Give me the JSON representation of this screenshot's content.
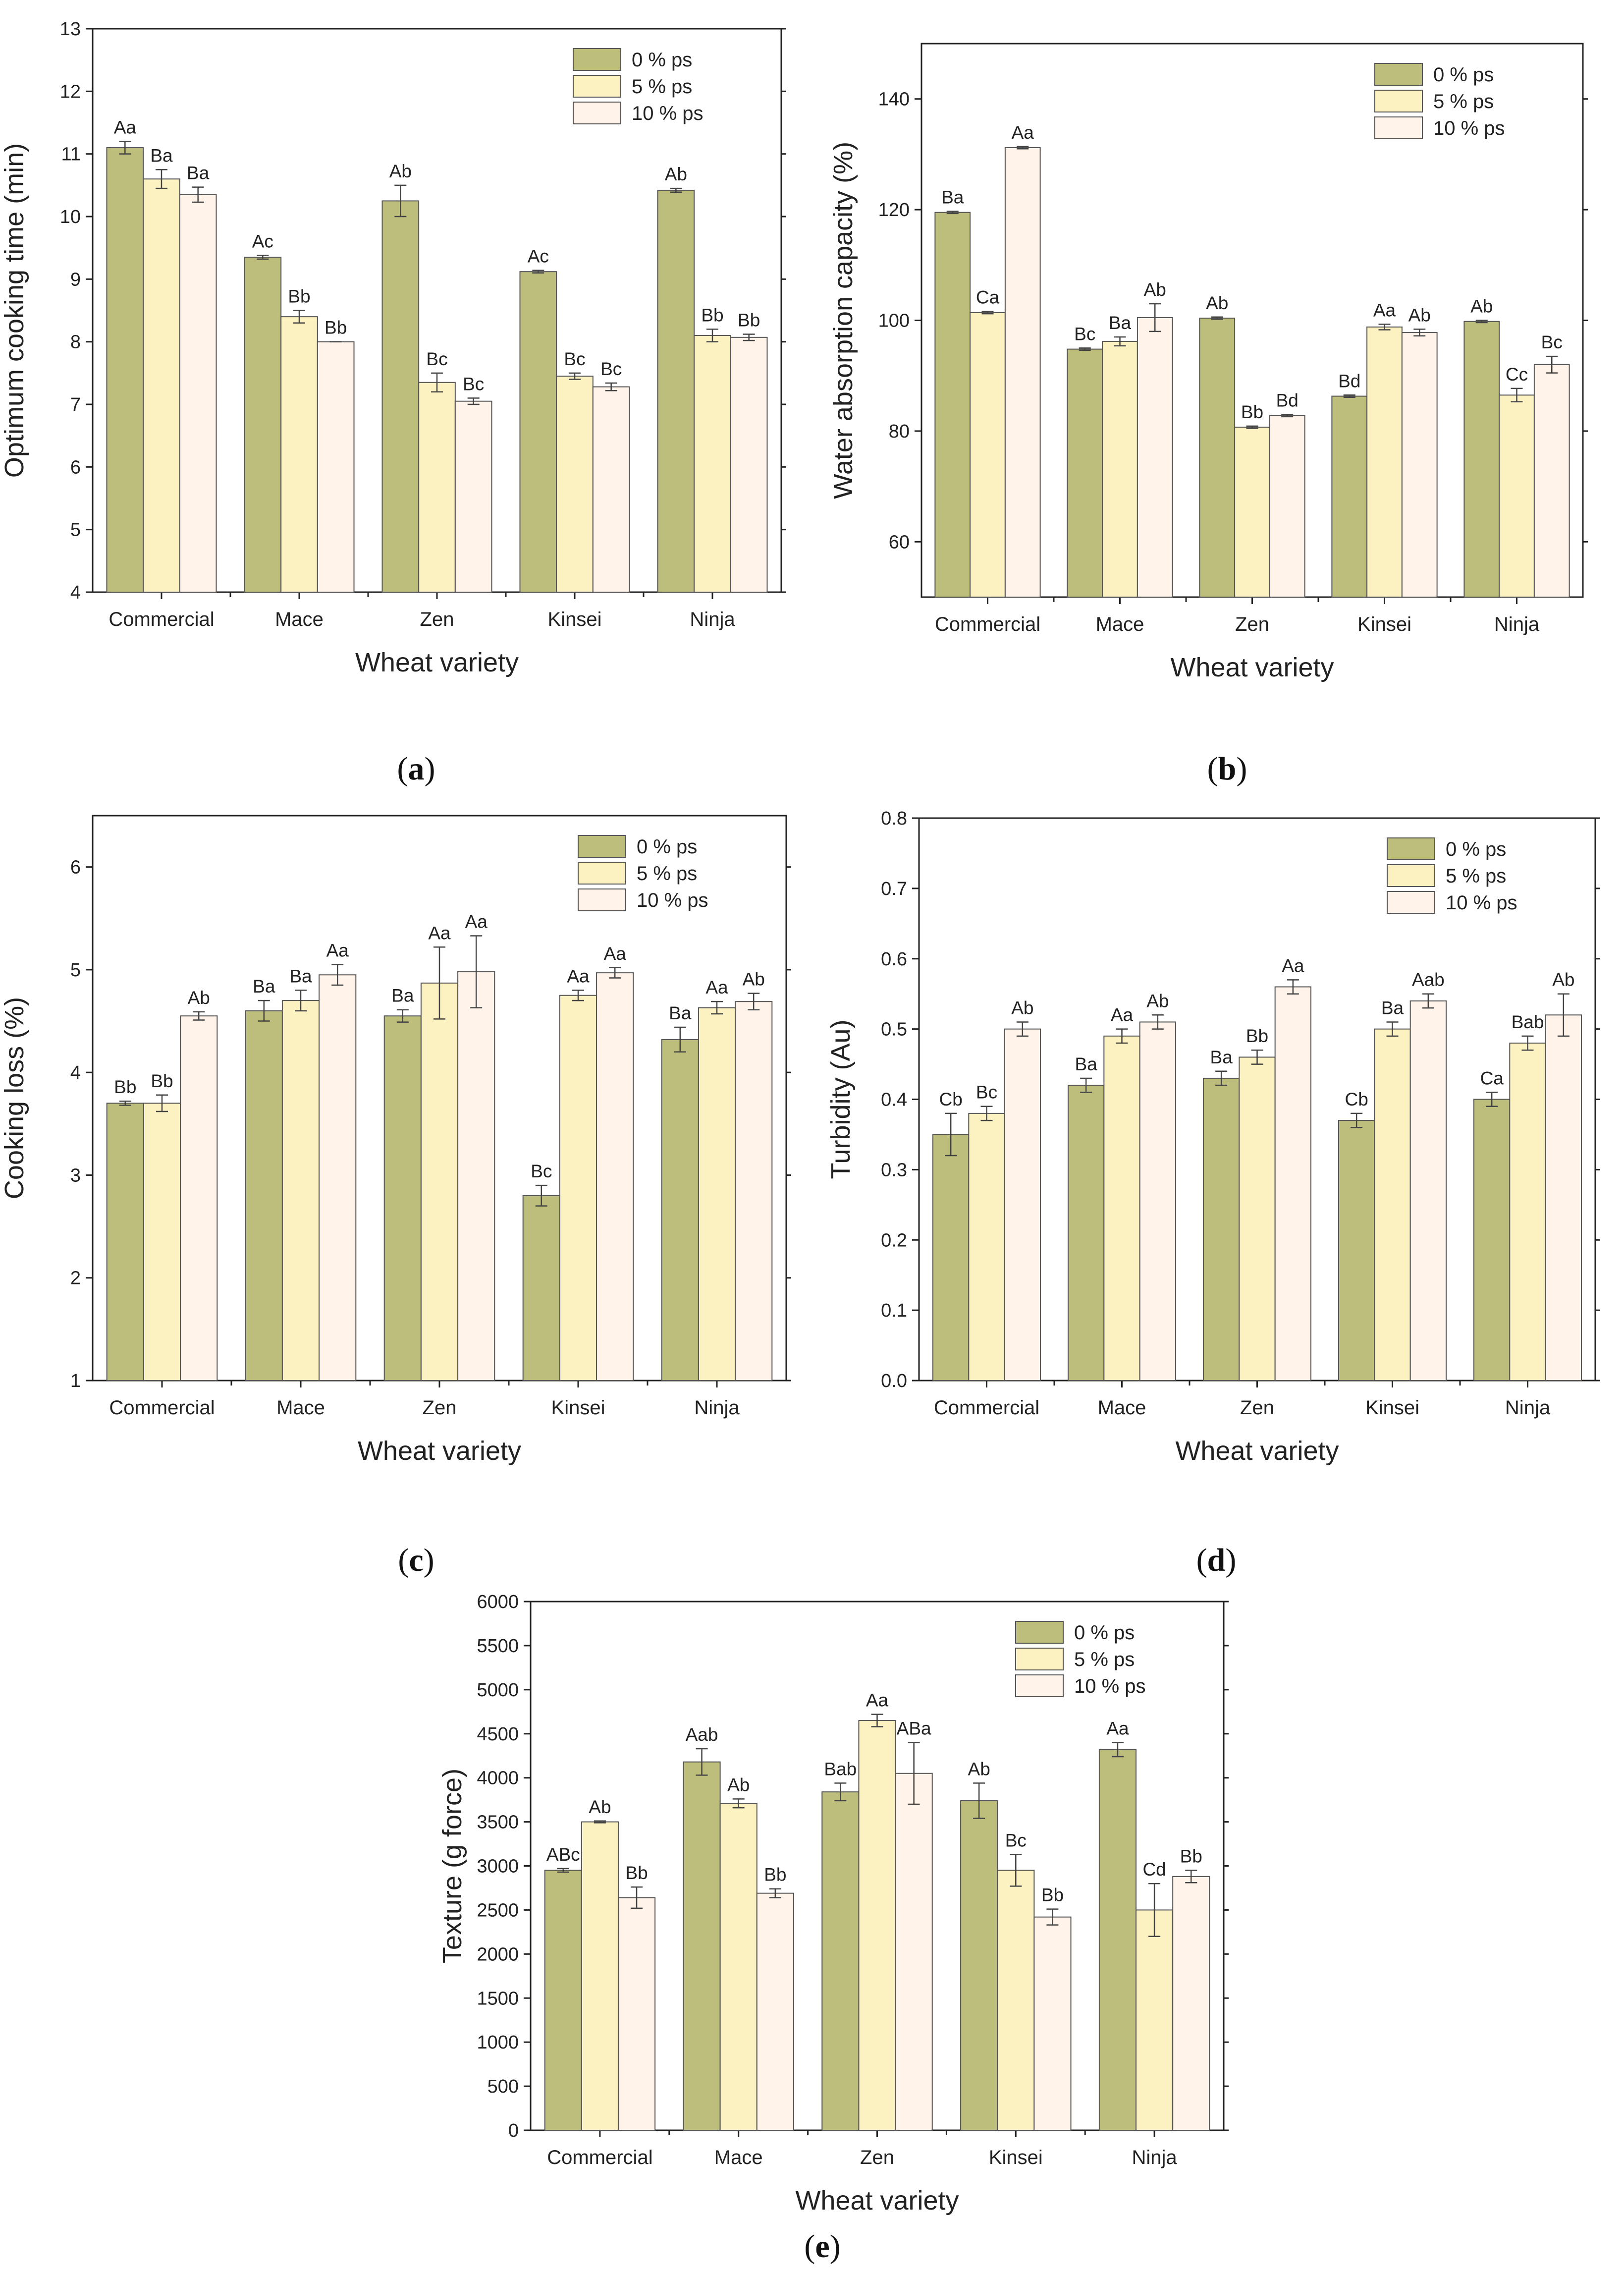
{
  "figure": {
    "colors": {
      "bar_0": "#bdbd7c",
      "bar_5": "#fbf1c1",
      "bar_10": "#fff3ea",
      "stroke": "#333333"
    },
    "error_bar_color": "#444444"
  },
  "chart_data": [
    {
      "id": "a",
      "type": "bar",
      "caption": "(a)",
      "caption_letter": "a",
      "ylabel": "Optimum cooking time (min)",
      "xlabel": "Wheat variety",
      "ylim": [
        4,
        13
      ],
      "yticks": [
        "4",
        "5",
        "6",
        "7",
        "8",
        "9",
        "10",
        "11",
        "12",
        "13"
      ],
      "categories": [
        "Commercial",
        "Mace",
        "Zen",
        "Kinsei",
        "Ninja"
      ],
      "legend": [
        "0 % ps",
        "5 % ps",
        "10 % ps"
      ],
      "legend_position": "top-right",
      "series": [
        {
          "name": "0 % ps",
          "values": [
            11.1,
            9.35,
            10.25,
            9.12,
            10.42
          ],
          "errors": [
            0.1,
            0.03,
            0.25,
            0.02,
            0.03
          ],
          "labels": [
            "Aa",
            "Ac",
            "Ab",
            "Ac",
            "Ab"
          ]
        },
        {
          "name": "5 % ps",
          "values": [
            10.6,
            8.4,
            7.35,
            7.45,
            8.1
          ],
          "errors": [
            0.15,
            0.1,
            0.15,
            0.05,
            0.1
          ],
          "labels": [
            "Ba",
            "Bb",
            "Bc",
            "Bc",
            "Bb"
          ]
        },
        {
          "name": "10 % ps",
          "values": [
            10.35,
            8.0,
            7.05,
            7.28,
            8.07
          ],
          "errors": [
            0.12,
            0.0,
            0.05,
            0.06,
            0.05
          ],
          "labels": [
            "Ba",
            "Bb",
            "Bc",
            "Bc",
            "Bb"
          ]
        }
      ]
    },
    {
      "id": "b",
      "type": "bar",
      "caption": "(b)",
      "caption_letter": "b",
      "ylabel": "Water absorption capacity (%)",
      "xlabel": "Wheat variety",
      "ylim": [
        50,
        150
      ],
      "yticks": [
        "60",
        "80",
        "100",
        "120",
        "140"
      ],
      "categories": [
        "Commercial",
        "Mace",
        "Zen",
        "Kinsei",
        "Ninja"
      ],
      "legend": [
        "0 % ps",
        "5 % ps",
        "10 % ps"
      ],
      "legend_position": "top-right",
      "series": [
        {
          "name": "0 % ps",
          "values": [
            119.5,
            94.8,
            100.4,
            86.3,
            99.8
          ],
          "errors": [
            0.2,
            0.2,
            0.2,
            0.2,
            0.2
          ],
          "labels": [
            "Ba",
            "Bc",
            "Ab",
            "Bd",
            "Ab"
          ]
        },
        {
          "name": "5 % ps",
          "values": [
            101.4,
            96.2,
            80.7,
            98.8,
            86.5
          ],
          "errors": [
            0.2,
            0.8,
            0.2,
            0.5,
            1.2
          ],
          "labels": [
            "Ca",
            "Ba",
            "Bb",
            "Aa",
            "Cc"
          ]
        },
        {
          "name": "10 % ps",
          "values": [
            131.2,
            100.5,
            82.8,
            97.8,
            92.0
          ],
          "errors": [
            0.2,
            2.5,
            0.2,
            0.6,
            1.5
          ],
          "labels": [
            "Aa",
            "Ab",
            "Bd",
            "Ab",
            "Bc"
          ]
        }
      ]
    },
    {
      "id": "c",
      "type": "bar",
      "caption": "(c)",
      "caption_letter": "c",
      "ylabel": "Cooking loss (%)",
      "xlabel": "Wheat variety",
      "ylim": [
        1,
        6.5
      ],
      "yticks": [
        "1",
        "2",
        "3",
        "4",
        "5",
        "6"
      ],
      "categories": [
        "Commercial",
        "Mace",
        "Zen",
        "Kinsei",
        "Ninja"
      ],
      "legend": [
        "0 % ps",
        "5 % ps",
        "10 % ps"
      ],
      "legend_position": "top-right",
      "series": [
        {
          "name": "0 % ps",
          "values": [
            3.7,
            4.6,
            4.55,
            2.8,
            4.32
          ],
          "errors": [
            0.02,
            0.1,
            0.06,
            0.1,
            0.12
          ],
          "labels": [
            "Bb",
            "Ba",
            "Ba",
            "Bc",
            "Ba"
          ]
        },
        {
          "name": "5 % ps",
          "values": [
            3.7,
            4.7,
            4.87,
            4.75,
            4.63
          ],
          "errors": [
            0.08,
            0.1,
            0.35,
            0.05,
            0.06
          ],
          "labels": [
            "Bb",
            "Ba",
            "Aa",
            "Aa",
            "Aa"
          ]
        },
        {
          "name": "10 % ps",
          "values": [
            4.55,
            4.95,
            4.98,
            4.97,
            4.69
          ],
          "errors": [
            0.04,
            0.1,
            0.35,
            0.05,
            0.08
          ],
          "labels": [
            "Ab",
            "Aa",
            "Aa",
            "Aa",
            "Ab"
          ]
        }
      ]
    },
    {
      "id": "d",
      "type": "bar",
      "caption": "(d)",
      "caption_letter": "d",
      "ylabel": "Turbidity (Au)",
      "xlabel": "Wheat variety",
      "ylim": [
        0,
        0.8
      ],
      "yticks": [
        "0.0",
        "0.1",
        "0.2",
        "0.3",
        "0.4",
        "0.5",
        "0.6",
        "0.7",
        "0.8"
      ],
      "categories": [
        "Commercial",
        "Mace",
        "Zen",
        "Kinsei",
        "Ninja"
      ],
      "legend": [
        "0 % ps",
        "5 % ps",
        "10 % ps"
      ],
      "legend_position": "top-right",
      "series": [
        {
          "name": "0 % ps",
          "values": [
            0.35,
            0.42,
            0.43,
            0.37,
            0.4
          ],
          "errors": [
            0.03,
            0.01,
            0.01,
            0.01,
            0.01
          ],
          "labels": [
            "Cb",
            "Ba",
            "Ba",
            "Cb",
            "Ca"
          ]
        },
        {
          "name": "5 % ps",
          "values": [
            0.38,
            0.49,
            0.46,
            0.5,
            0.48
          ],
          "errors": [
            0.01,
            0.01,
            0.01,
            0.01,
            0.01
          ],
          "labels": [
            "Bc",
            "Aa",
            "Bb",
            "Ba",
            "Bab"
          ]
        },
        {
          "name": "10 % ps",
          "values": [
            0.5,
            0.51,
            0.56,
            0.54,
            0.52
          ],
          "errors": [
            0.01,
            0.01,
            0.01,
            0.01,
            0.03
          ],
          "labels": [
            "Ab",
            "Ab",
            "Aa",
            "Aab",
            "Ab"
          ]
        }
      ]
    },
    {
      "id": "e",
      "type": "bar",
      "caption": "(e)",
      "caption_letter": "e",
      "ylabel": "Texture (g force)",
      "xlabel": "Wheat variety",
      "ylim": [
        0,
        6000
      ],
      "yticks": [
        "0",
        "500",
        "1000",
        "1500",
        "2000",
        "2500",
        "3000",
        "3500",
        "4000",
        "4500",
        "5000",
        "5500",
        "6000"
      ],
      "categories": [
        "Commercial",
        "Mace",
        "Zen",
        "Kinsei",
        "Ninja"
      ],
      "legend": [
        "0 % ps",
        "5 % ps",
        "10 % ps"
      ],
      "legend_position": "top-right",
      "series": [
        {
          "name": "0 % ps",
          "values": [
            2950,
            4180,
            3840,
            3740,
            4320
          ],
          "errors": [
            20,
            150,
            100,
            200,
            80
          ],
          "labels": [
            "ABc",
            "Aab",
            "Bab",
            "Ab",
            "Aa"
          ]
        },
        {
          "name": "5 % ps",
          "values": [
            3500,
            3710,
            4650,
            2950,
            2500
          ],
          "errors": [
            10,
            50,
            70,
            180,
            300
          ],
          "labels": [
            "Ab",
            "Ab",
            "Aa",
            "Bc",
            "Cd"
          ]
        },
        {
          "name": "10 % ps",
          "values": [
            2640,
            2690,
            4050,
            2420,
            2880
          ],
          "errors": [
            120,
            50,
            350,
            90,
            70
          ],
          "labels": [
            "Bb",
            "Bb",
            "ABa",
            "Bb",
            "Bb"
          ]
        }
      ]
    }
  ]
}
